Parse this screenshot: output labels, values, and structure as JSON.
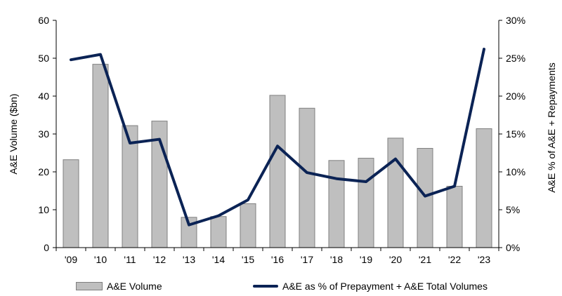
{
  "chart_data": {
    "type": "bar+line",
    "categories": [
      "'09",
      "'10",
      "'11",
      "'12",
      "'13",
      "'14",
      "'15",
      "'16",
      "'17",
      "'18",
      "'19",
      "'20",
      "'21",
      "'22",
      "'23"
    ],
    "series": [
      {
        "name": "A&E Volume",
        "type": "bar",
        "axis": "left",
        "values": [
          23.2,
          48.4,
          32.2,
          33.4,
          8.0,
          8.2,
          11.6,
          40.2,
          36.8,
          23.0,
          23.6,
          28.9,
          26.2,
          16.2,
          31.4
        ]
      },
      {
        "name": "A&E as % of Prepayment + A&E Total Volumes",
        "type": "line",
        "axis": "right",
        "values": [
          24.8,
          25.5,
          13.8,
          14.3,
          3.0,
          4.2,
          6.3,
          13.4,
          9.9,
          9.1,
          8.7,
          11.7,
          6.8,
          8.1,
          26.2
        ]
      }
    ],
    "ylabel": "A&E Volume ($bn)",
    "ylabel_right": "A&E % of A&E + Repayments",
    "ylim": [
      0,
      60
    ],
    "ylim_right": [
      0,
      30
    ],
    "yticks": [
      "0",
      "10",
      "20",
      "30",
      "40",
      "50",
      "60"
    ],
    "yticks_right": [
      "0%",
      "5%",
      "10%",
      "15%",
      "20%",
      "25%",
      "30%"
    ],
    "grid": false,
    "legend_position": "bottom",
    "colors": {
      "bar_fill": "#bfbfbf",
      "bar_stroke": "#7f7f7f",
      "line": "#0b2355"
    }
  }
}
